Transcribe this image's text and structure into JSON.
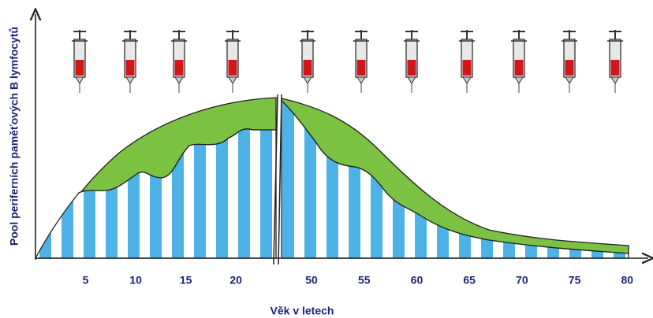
{
  "chart_data": {
    "type": "area",
    "x_label": "Věk v letech",
    "y_label": "Pool periferních paměťových B lymfocytů",
    "x_segments": [
      {
        "xlim": [
          0,
          24
        ],
        "xticks": [
          5,
          10,
          15,
          20
        ]
      },
      {
        "xlim": [
          47,
          82
        ],
        "xticks": [
          50,
          55,
          60,
          65,
          70,
          75,
          80
        ]
      }
    ]
  }
}
